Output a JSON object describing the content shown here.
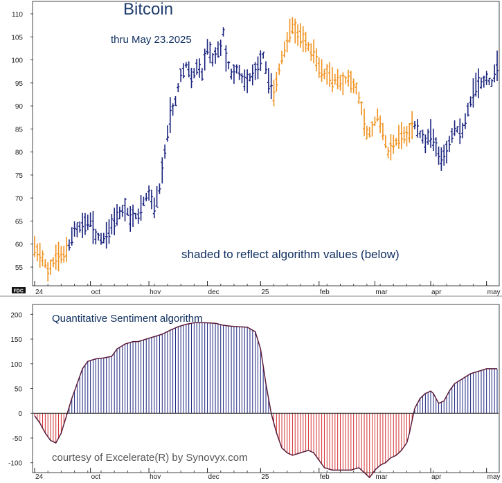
{
  "chart_data": [
    {
      "type": "ohlc",
      "title": "Bitcoin",
      "subtitle": "thru May 23.2025",
      "annotation": "shaded to reflect algorithm values (below)",
      "badge": "FDC",
      "ylabel": "",
      "xlabel": "",
      "ylim": [
        52,
        112
      ],
      "yticks": [
        110,
        105,
        100,
        95,
        90,
        85,
        80,
        75,
        70,
        65,
        60,
        55
      ],
      "xticks": [
        {
          "label": "24",
          "index": 0
        },
        {
          "label": "oct",
          "index": 21
        },
        {
          "label": "hov",
          "index": 43
        },
        {
          "label": "dec",
          "index": 65
        },
        {
          "label": "25",
          "index": 85
        },
        {
          "label": "feb",
          "index": 107
        },
        {
          "label": "mar",
          "index": 128
        },
        {
          "label": "apr",
          "index": 149
        },
        {
          "label": "may",
          "index": 170
        }
      ],
      "colors": {
        "positive": "#1a237e",
        "negative": "#f0911e"
      },
      "anchors": [
        [
          0,
          59
        ],
        [
          3,
          57
        ],
        [
          5,
          54
        ],
        [
          8,
          57
        ],
        [
          11,
          58
        ],
        [
          13,
          60
        ],
        [
          15,
          63
        ],
        [
          18,
          64
        ],
        [
          21,
          65
        ],
        [
          23,
          62
        ],
        [
          26,
          61
        ],
        [
          28,
          63
        ],
        [
          31,
          66
        ],
        [
          34,
          68
        ],
        [
          36,
          66
        ],
        [
          39,
          66
        ],
        [
          41,
          69
        ],
        [
          43,
          71
        ],
        [
          45,
          68
        ],
        [
          47,
          72
        ],
        [
          49,
          80
        ],
        [
          51,
          88
        ],
        [
          53,
          91
        ],
        [
          55,
          97
        ],
        [
          57,
          99
        ],
        [
          59,
          96
        ],
        [
          61,
          98
        ],
        [
          63,
          97
        ],
        [
          65,
          103
        ],
        [
          67,
          100
        ],
        [
          70,
          103
        ],
        [
          71,
          106
        ],
        [
          72,
          101
        ],
        [
          74,
          97
        ],
        [
          76,
          98
        ],
        [
          78,
          96
        ],
        [
          80,
          95
        ],
        [
          82,
          97
        ],
        [
          84,
          99
        ],
        [
          86,
          101
        ],
        [
          88,
          95
        ],
        [
          90,
          93
        ],
        [
          92,
          98
        ],
        [
          95,
          104
        ],
        [
          97,
          107
        ],
        [
          100,
          105
        ],
        [
          103,
          103
        ],
        [
          105,
          101
        ],
        [
          107,
          98
        ],
        [
          109,
          97
        ],
        [
          112,
          96
        ],
        [
          115,
          95
        ],
        [
          118,
          96
        ],
        [
          121,
          94
        ],
        [
          123,
          90
        ],
        [
          125,
          84
        ],
        [
          127,
          85
        ],
        [
          129,
          88
        ],
        [
          131,
          84
        ],
        [
          133,
          80
        ],
        [
          135,
          82
        ],
        [
          138,
          83
        ],
        [
          140,
          84
        ],
        [
          143,
          86
        ],
        [
          145,
          84
        ],
        [
          147,
          82
        ],
        [
          149,
          84
        ],
        [
          151,
          81
        ],
        [
          153,
          78
        ],
        [
          154,
          79
        ],
        [
          156,
          82
        ],
        [
          158,
          85
        ],
        [
          161,
          85
        ],
        [
          164,
          91
        ],
        [
          166,
          94
        ],
        [
          168,
          95
        ],
        [
          170,
          96
        ],
        [
          172,
          95
        ],
        [
          174,
          99
        ]
      ],
      "series_values": null
    },
    {
      "type": "bar",
      "title": "Quantitative Sentiment algorithm",
      "credit": "courtesy of Excelerate(R) by Synovyx.com",
      "ylim": [
        -120,
        220
      ],
      "yticks": [
        200,
        150,
        100,
        50,
        0,
        -50,
        -100
      ],
      "ytick_labels": [
        "200",
        "150",
        "100",
        "50",
        "0",
        "-50",
        "-100"
      ],
      "xticks": [
        {
          "label": "24",
          "index": 0
        },
        {
          "label": "oct",
          "index": 21
        },
        {
          "label": "hov",
          "index": 43
        },
        {
          "label": "dec",
          "index": 65
        },
        {
          "label": "25",
          "index": 85
        },
        {
          "label": "feb",
          "index": 107
        },
        {
          "label": "mar",
          "index": 128
        },
        {
          "label": "apr",
          "index": 149
        },
        {
          "label": "may",
          "index": 170
        }
      ],
      "colors": {
        "positive": "#1a237e",
        "negative": "#d32f2f",
        "outline": "#5a1a3a"
      },
      "anchors": [
        [
          0,
          -5
        ],
        [
          2,
          -20
        ],
        [
          4,
          -40
        ],
        [
          6,
          -55
        ],
        [
          8,
          -60
        ],
        [
          10,
          -40
        ],
        [
          12,
          -5
        ],
        [
          14,
          30
        ],
        [
          16,
          60
        ],
        [
          18,
          90
        ],
        [
          20,
          105
        ],
        [
          23,
          110
        ],
        [
          26,
          112
        ],
        [
          29,
          115
        ],
        [
          31,
          130
        ],
        [
          34,
          140
        ],
        [
          37,
          145
        ],
        [
          39,
          145
        ],
        [
          42,
          150
        ],
        [
          45,
          155
        ],
        [
          48,
          160
        ],
        [
          51,
          168
        ],
        [
          54,
          175
        ],
        [
          57,
          180
        ],
        [
          60,
          183
        ],
        [
          64,
          183
        ],
        [
          68,
          182
        ],
        [
          71,
          178
        ],
        [
          74,
          176
        ],
        [
          77,
          175
        ],
        [
          80,
          174
        ],
        [
          83,
          165
        ],
        [
          85,
          130
        ],
        [
          87,
          60
        ],
        [
          89,
          0
        ],
        [
          91,
          -40
        ],
        [
          93,
          -70
        ],
        [
          95,
          -80
        ],
        [
          97,
          -85
        ],
        [
          100,
          -80
        ],
        [
          103,
          -75
        ],
        [
          105,
          -80
        ],
        [
          107,
          -95
        ],
        [
          109,
          -110
        ],
        [
          112,
          -115
        ],
        [
          115,
          -115
        ],
        [
          119,
          -115
        ],
        [
          122,
          -110
        ],
        [
          124,
          -120
        ],
        [
          126,
          -130
        ],
        [
          128,
          -115
        ],
        [
          130,
          -105
        ],
        [
          132,
          -100
        ],
        [
          134,
          -90
        ],
        [
          136,
          -85
        ],
        [
          138,
          -75
        ],
        [
          140,
          -60
        ],
        [
          141,
          -40
        ],
        [
          143,
          10
        ],
        [
          145,
          30
        ],
        [
          147,
          40
        ],
        [
          149,
          45
        ],
        [
          150,
          40
        ],
        [
          152,
          20
        ],
        [
          154,
          25
        ],
        [
          156,
          45
        ],
        [
          158,
          60
        ],
        [
          161,
          70
        ],
        [
          164,
          80
        ],
        [
          167,
          85
        ],
        [
          170,
          90
        ],
        [
          174,
          90
        ]
      ]
    }
  ]
}
